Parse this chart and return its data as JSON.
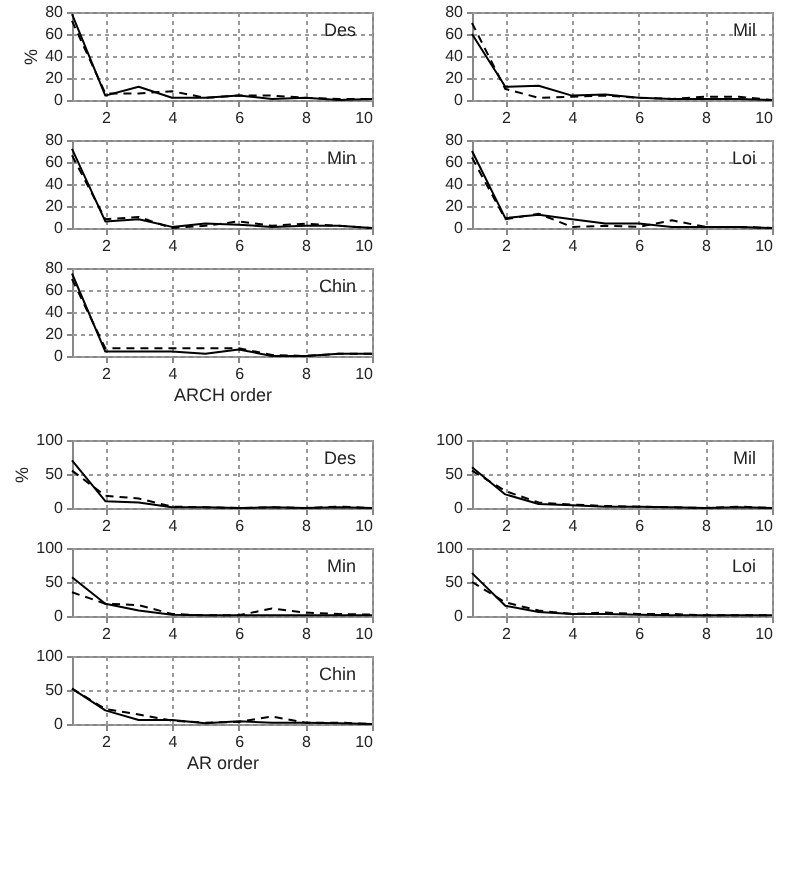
{
  "chart_data": [
    {
      "type": "line",
      "ylabel": "%",
      "annotations": [
        "Des"
      ],
      "x": [
        1,
        2,
        3,
        4,
        5,
        6,
        7,
        8,
        9,
        10
      ],
      "xlim": [
        1,
        10
      ],
      "xticks": [
        2,
        4,
        6,
        8,
        10
      ],
      "ylim": [
        0,
        80
      ],
      "yticks": [
        0,
        20,
        40,
        60,
        80
      ],
      "grid": true,
      "series": [
        {
          "color": "#000000",
          "line_style": "solid",
          "values": [
            78,
            4,
            12,
            2,
            2,
            4,
            1,
            2,
            0,
            1
          ]
        },
        {
          "color": "#000000",
          "line_style": "dashed",
          "values": [
            72,
            6,
            6,
            8,
            2,
            4,
            4,
            2,
            1,
            1
          ]
        }
      ]
    },
    {
      "type": "line",
      "annotations": [
        "Mil"
      ],
      "x": [
        1,
        2,
        3,
        4,
        5,
        6,
        7,
        8,
        9,
        10
      ],
      "xlim": [
        1,
        10
      ],
      "xticks": [
        2,
        4,
        6,
        8,
        10
      ],
      "ylim": [
        0,
        80
      ],
      "yticks": [
        0,
        20,
        40,
        60,
        80
      ],
      "grid": true,
      "series": [
        {
          "color": "#000000",
          "line_style": "solid",
          "values": [
            60,
            12,
            13,
            4,
            5,
            2,
            1,
            1,
            1,
            0
          ]
        },
        {
          "color": "#000000",
          "line_style": "dashed",
          "values": [
            70,
            10,
            2,
            3,
            4,
            2,
            1,
            3,
            3,
            0
          ]
        }
      ]
    },
    {
      "type": "line",
      "annotations": [
        "Min"
      ],
      "x": [
        1,
        2,
        3,
        4,
        5,
        6,
        7,
        8,
        9,
        10
      ],
      "xlim": [
        1,
        10
      ],
      "xticks": [
        2,
        4,
        6,
        8,
        10
      ],
      "ylim": [
        0,
        80
      ],
      "yticks": [
        0,
        20,
        40,
        60,
        80
      ],
      "grid": true,
      "series": [
        {
          "color": "#000000",
          "line_style": "solid",
          "values": [
            72,
            6,
            8,
            1,
            4,
            3,
            1,
            2,
            2,
            0
          ]
        },
        {
          "color": "#000000",
          "line_style": "dashed",
          "values": [
            66,
            8,
            10,
            0,
            2,
            6,
            2,
            4,
            2,
            0
          ]
        }
      ]
    },
    {
      "type": "line",
      "annotations": [
        "Loi"
      ],
      "x": [
        1,
        2,
        3,
        4,
        5,
        6,
        7,
        8,
        9,
        10
      ],
      "xlim": [
        1,
        10
      ],
      "xticks": [
        2,
        4,
        6,
        8,
        10
      ],
      "ylim": [
        0,
        80
      ],
      "yticks": [
        0,
        20,
        40,
        60,
        80
      ],
      "grid": true,
      "series": [
        {
          "color": "#000000",
          "line_style": "solid",
          "values": [
            70,
            9,
            12,
            8,
            4,
            4,
            1,
            1,
            1,
            0
          ]
        },
        {
          "color": "#000000",
          "line_style": "dashed",
          "values": [
            64,
            8,
            13,
            1,
            2,
            1,
            7,
            1,
            1,
            0
          ]
        }
      ]
    },
    {
      "type": "line",
      "xlabel": "ARCH order",
      "annotations": [
        "Chin"
      ],
      "x": [
        1,
        2,
        3,
        4,
        5,
        6,
        7,
        8,
        9,
        10
      ],
      "xlim": [
        1,
        10
      ],
      "xticks": [
        2,
        4,
        6,
        8,
        10
      ],
      "ylim": [
        0,
        80
      ],
      "yticks": [
        0,
        20,
        40,
        60,
        80
      ],
      "grid": true,
      "series": [
        {
          "color": "#000000",
          "line_style": "solid",
          "values": [
            75,
            4,
            4,
            4,
            2,
            6,
            0,
            0,
            2,
            2
          ]
        },
        {
          "color": "#000000",
          "line_style": "dashed",
          "values": [
            70,
            7,
            7,
            7,
            7,
            7,
            1,
            0,
            2,
            2
          ]
        }
      ]
    },
    {
      "type": "line",
      "ylabel": "%",
      "annotations": [
        "Des"
      ],
      "x": [
        1,
        2,
        3,
        4,
        5,
        6,
        7,
        8,
        9,
        10
      ],
      "xlim": [
        1,
        10
      ],
      "xticks": [
        2,
        4,
        6,
        8,
        10
      ],
      "ylim": [
        0,
        100
      ],
      "yticks": [
        0,
        50,
        100
      ],
      "grid": true,
      "series": [
        {
          "color": "#000000",
          "line_style": "solid",
          "values": [
            70,
            10,
            8,
            1,
            1,
            0,
            1,
            0,
            1,
            0
          ]
        },
        {
          "color": "#000000",
          "line_style": "dashed",
          "values": [
            55,
            18,
            14,
            2,
            1,
            0,
            1,
            0,
            2,
            0
          ]
        }
      ]
    },
    {
      "type": "line",
      "annotations": [
        "Mil"
      ],
      "x": [
        1,
        2,
        3,
        4,
        5,
        6,
        7,
        8,
        9,
        10
      ],
      "xlim": [
        1,
        10
      ],
      "xticks": [
        2,
        4,
        6,
        8,
        10
      ],
      "ylim": [
        0,
        100
      ],
      "yticks": [
        0,
        50,
        100
      ],
      "grid": true,
      "series": [
        {
          "color": "#000000",
          "line_style": "solid",
          "values": [
            60,
            20,
            6,
            4,
            2,
            2,
            1,
            0,
            1,
            0
          ]
        },
        {
          "color": "#000000",
          "line_style": "dashed",
          "values": [
            55,
            25,
            8,
            5,
            3,
            2,
            1,
            0,
            2,
            0
          ]
        }
      ]
    },
    {
      "type": "line",
      "annotations": [
        "Min"
      ],
      "x": [
        1,
        2,
        3,
        4,
        5,
        6,
        7,
        8,
        9,
        10
      ],
      "xlim": [
        1,
        10
      ],
      "xticks": [
        2,
        4,
        6,
        8,
        10
      ],
      "ylim": [
        0,
        100
      ],
      "yticks": [
        0,
        50,
        100
      ],
      "grid": true,
      "series": [
        {
          "color": "#000000",
          "line_style": "solid",
          "values": [
            57,
            18,
            8,
            2,
            1,
            1,
            1,
            1,
            1,
            1
          ]
        },
        {
          "color": "#000000",
          "line_style": "dashed",
          "values": [
            35,
            18,
            16,
            3,
            1,
            1,
            11,
            5,
            3,
            2
          ]
        }
      ]
    },
    {
      "type": "line",
      "annotations": [
        "Loi"
      ],
      "x": [
        1,
        2,
        3,
        4,
        5,
        6,
        7,
        8,
        9,
        10
      ],
      "xlim": [
        1,
        10
      ],
      "xticks": [
        2,
        4,
        6,
        8,
        10
      ],
      "ylim": [
        0,
        100
      ],
      "yticks": [
        0,
        50,
        100
      ],
      "grid": true,
      "series": [
        {
          "color": "#000000",
          "line_style": "solid",
          "values": [
            63,
            15,
            6,
            3,
            3,
            2,
            1,
            1,
            1,
            1
          ]
        },
        {
          "color": "#000000",
          "line_style": "dashed",
          "values": [
            50,
            20,
            8,
            3,
            5,
            3,
            3,
            1,
            1,
            1
          ]
        }
      ]
    },
    {
      "type": "line",
      "xlabel": "AR order",
      "annotations": [
        "Chin"
      ],
      "x": [
        1,
        2,
        3,
        4,
        5,
        6,
        7,
        8,
        9,
        10
      ],
      "xlim": [
        1,
        10
      ],
      "xticks": [
        2,
        4,
        6,
        8,
        10
      ],
      "ylim": [
        0,
        100
      ],
      "yticks": [
        0,
        50,
        100
      ],
      "grid": true,
      "series": [
        {
          "color": "#000000",
          "line_style": "solid",
          "values": [
            52,
            20,
            6,
            6,
            1,
            4,
            2,
            2,
            1,
            0
          ]
        },
        {
          "color": "#000000",
          "line_style": "dashed",
          "values": [
            52,
            22,
            14,
            5,
            2,
            3,
            11,
            2,
            2,
            0
          ]
        }
      ]
    }
  ]
}
